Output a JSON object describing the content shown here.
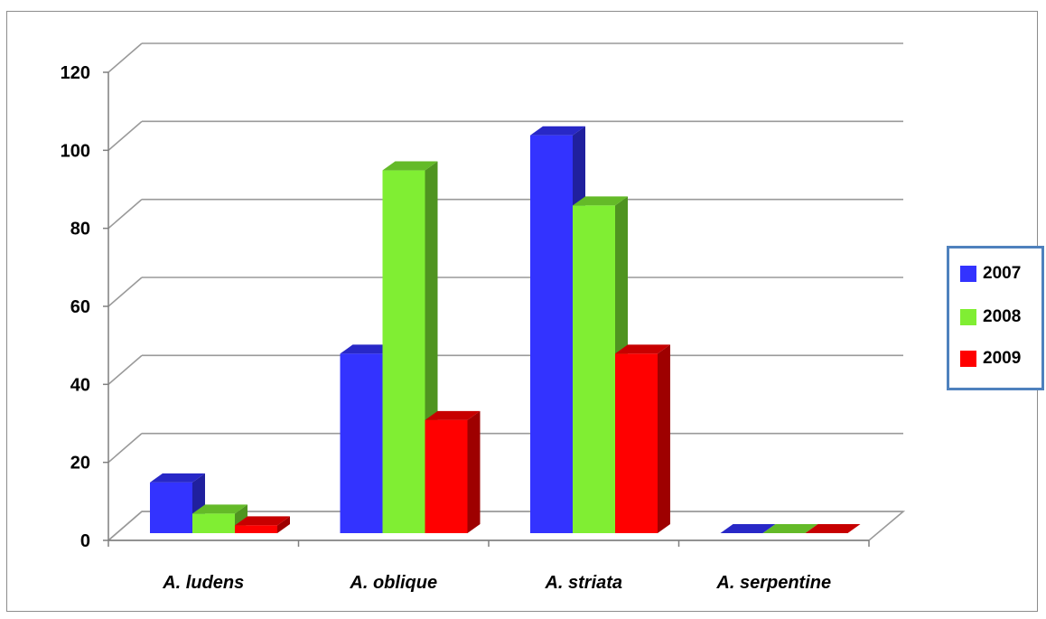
{
  "chart_data": {
    "type": "bar",
    "categories": [
      "A. ludens",
      "A. oblique",
      "A. striata",
      "A. serpentine"
    ],
    "series": [
      {
        "name": "2007",
        "color": "#3333ff",
        "values": [
          13,
          46,
          102,
          0
        ]
      },
      {
        "name": "2008",
        "color": "#80ee33",
        "values": [
          5,
          93,
          84,
          0
        ]
      },
      {
        "name": "2009",
        "color": "#ff0000",
        "values": [
          2,
          29,
          46,
          0
        ]
      }
    ],
    "ylim": [
      0,
      120
    ],
    "yticks": [
      "0",
      "20",
      "40",
      "60",
      "80",
      "100",
      "120"
    ],
    "grid": true,
    "legend_position": "right"
  }
}
